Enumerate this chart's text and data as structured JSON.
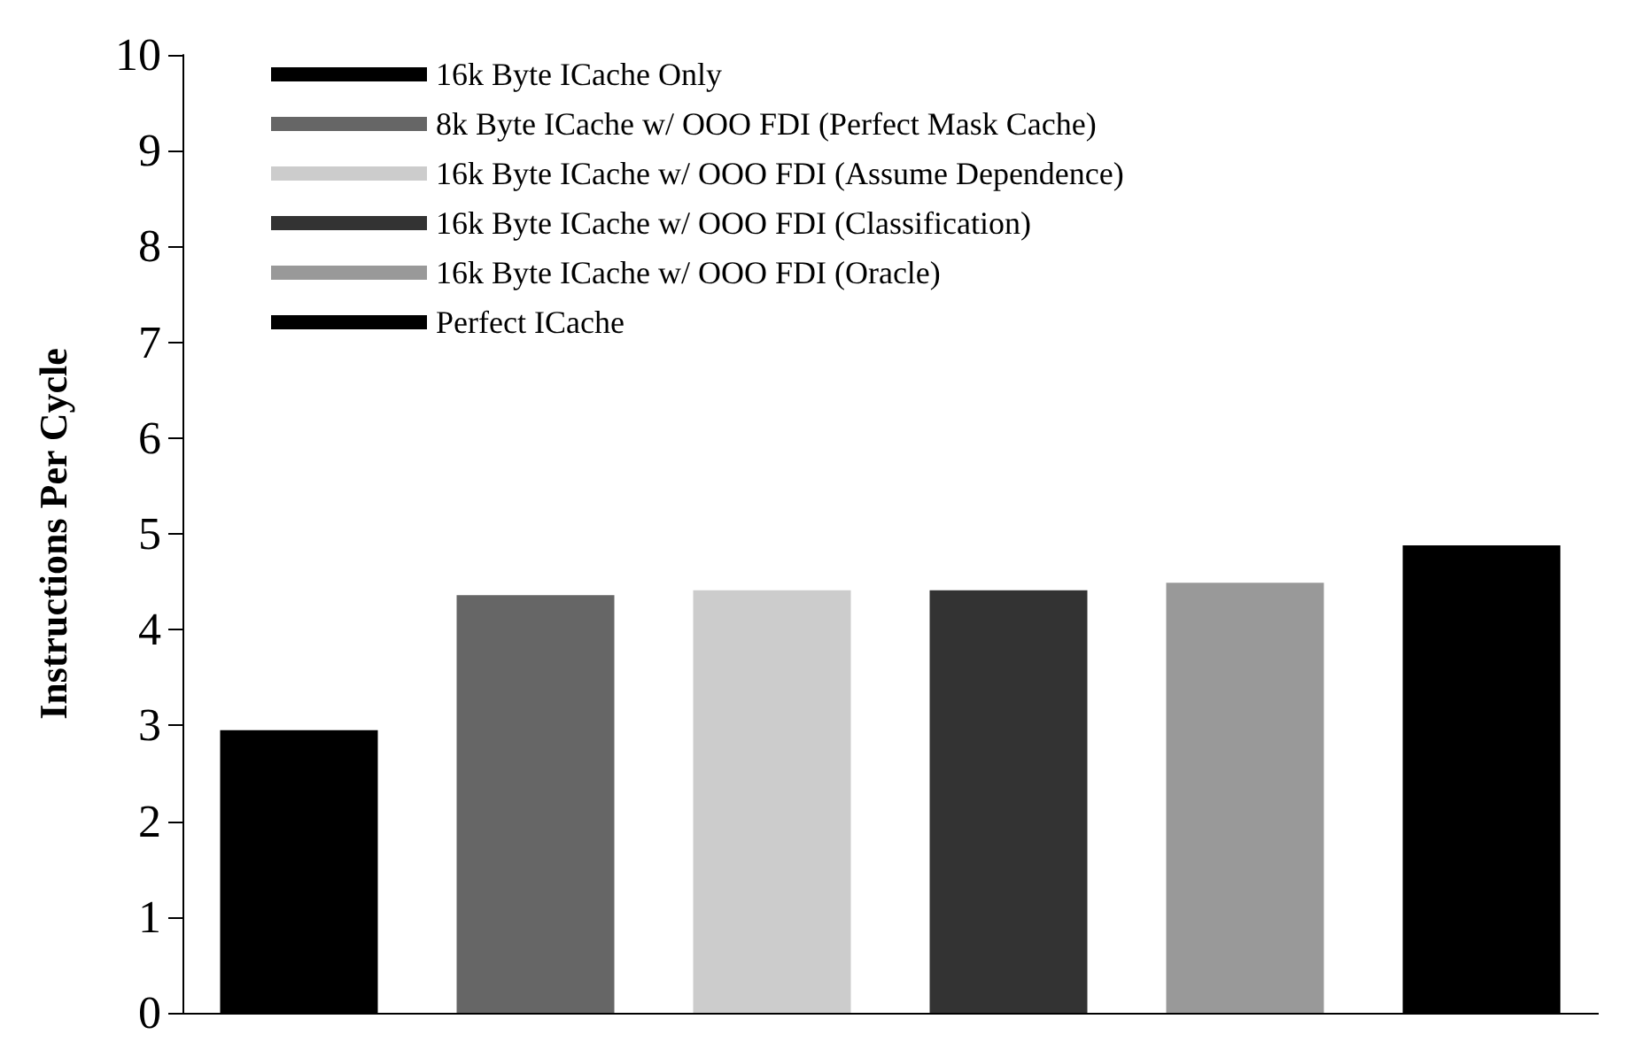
{
  "chart_data": {
    "type": "bar",
    "ylabel": "Instructions Per Cycle",
    "categories": [
      null
    ],
    "ylim": [
      0,
      10
    ],
    "yticks": [
      0,
      1,
      2,
      3,
      4,
      5,
      6,
      7,
      8,
      9,
      10
    ],
    "grid": false,
    "legend": "top left",
    "series": [
      {
        "name": "16k Byte ICache Only",
        "color": "#000000",
        "values": [
          2.95
        ]
      },
      {
        "name": "8k Byte ICache w/ OOO FDI (Perfect Mask Cache)",
        "color": "#666666",
        "values": [
          4.36
        ]
      },
      {
        "name": "16k Byte ICache w/ OOO FDI (Assume Dependence)",
        "color": "#cccccc",
        "values": [
          4.41
        ]
      },
      {
        "name": "16k Byte ICache w/ OOO FDI (Classification)",
        "color": "#333333",
        "values": [
          4.41
        ]
      },
      {
        "name": "16k Byte ICache w/ OOO FDI (Oracle)",
        "color": "#999999",
        "values": [
          4.49
        ]
      },
      {
        "name": "Perfect ICache",
        "color": "#000000",
        "values": [
          4.88
        ]
      }
    ]
  }
}
